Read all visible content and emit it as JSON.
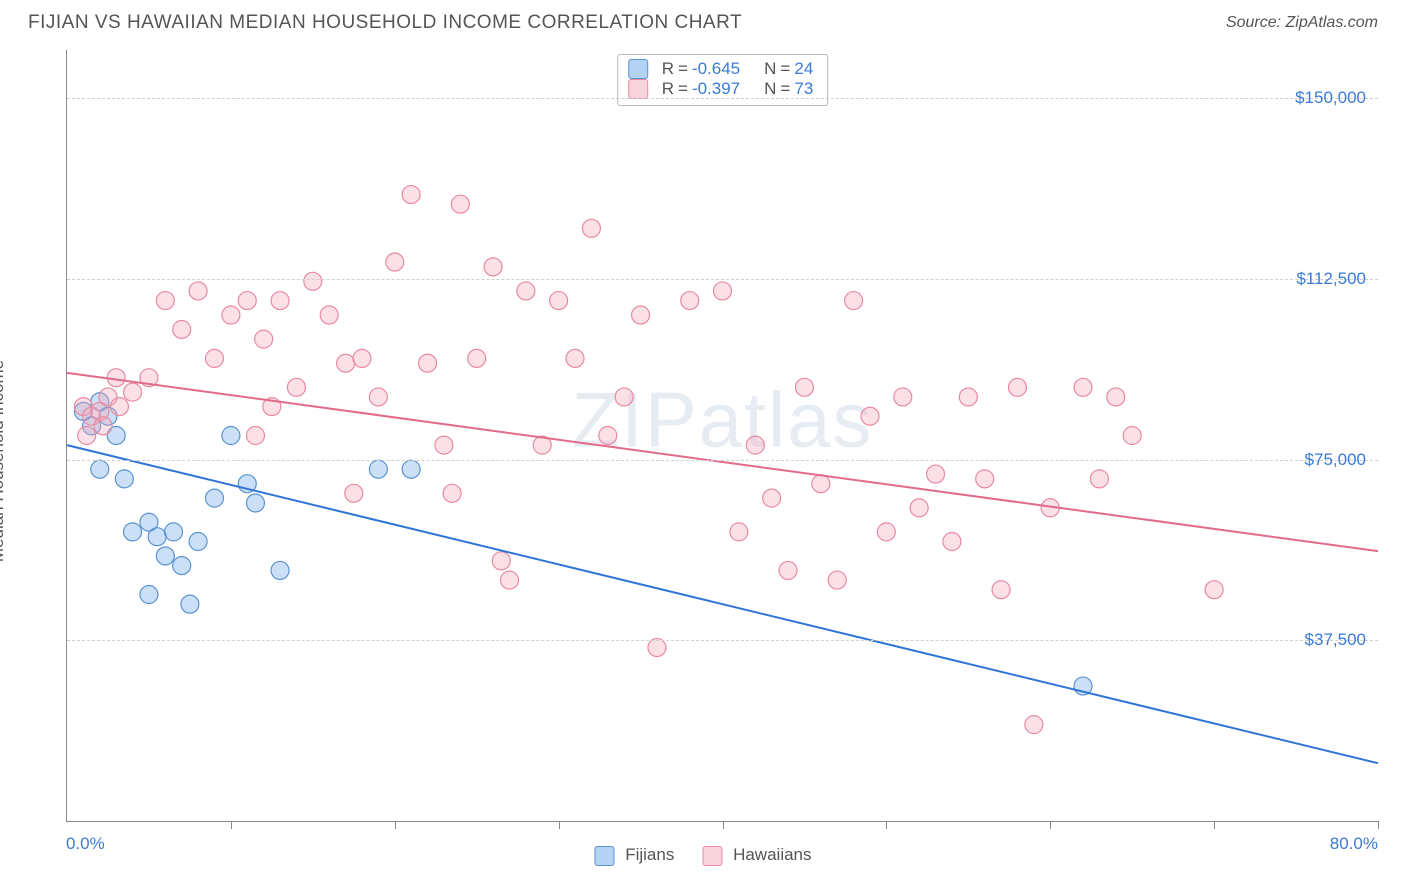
{
  "header": {
    "title": "FIJIAN VS HAWAIIAN MEDIAN HOUSEHOLD INCOME CORRELATION CHART",
    "source": "Source: ZipAtlas.com"
  },
  "chart": {
    "type": "scatter",
    "ylabel": "Median Household Income",
    "watermark": "ZIPatlas",
    "xlim": [
      0,
      80
    ],
    "ylim": [
      0,
      160000
    ],
    "x_tick_positions": [
      0,
      10,
      20,
      30,
      40,
      50,
      60,
      70,
      80
    ],
    "y_gridlines": [
      37500,
      75000,
      112500,
      150000
    ],
    "y_tick_labels": [
      "$37,500",
      "$75,000",
      "$112,500",
      "$150,000"
    ],
    "x_min_label": "0.0%",
    "x_max_label": "80.0%",
    "background_color": "#ffffff",
    "grid_color": "#d0d0d0",
    "axis_color": "#888888",
    "text_color": "#555555",
    "value_color": "#3a7bd5",
    "marker_radius": 9,
    "marker_opacity": 0.45,
    "line_width": 2,
    "title_fontsize": 19,
    "label_fontsize": 17,
    "series": [
      {
        "name": "Fijians",
        "color": "#6aa6e6",
        "fill": "rgba(106,166,230,0.35)",
        "stroke": "#5a93d1",
        "correlation_R": "-0.645",
        "correlation_N": "24",
        "trend": {
          "x1": 0,
          "y1": 78000,
          "x2": 80,
          "y2": 12000,
          "color": "#2f75d6"
        },
        "points": [
          [
            1.0,
            85000
          ],
          [
            1.5,
            82000
          ],
          [
            2.0,
            87000
          ],
          [
            2.5,
            84000
          ],
          [
            3.0,
            80000
          ],
          [
            2.0,
            73000
          ],
          [
            3.5,
            71000
          ],
          [
            4.0,
            60000
          ],
          [
            5.0,
            62000
          ],
          [
            5.5,
            59000
          ],
          [
            6.0,
            55000
          ],
          [
            7.0,
            53000
          ],
          [
            6.5,
            60000
          ],
          [
            8.0,
            58000
          ],
          [
            9.0,
            67000
          ],
          [
            10.0,
            80000
          ],
          [
            11.0,
            70000
          ],
          [
            11.5,
            66000
          ],
          [
            13.0,
            52000
          ],
          [
            7.5,
            45000
          ],
          [
            5.0,
            47000
          ],
          [
            19.0,
            73000
          ],
          [
            21.0,
            73000
          ],
          [
            62.0,
            28000
          ]
        ]
      },
      {
        "name": "Hawaiians",
        "color": "#f4a7b9",
        "fill": "rgba(244,167,185,0.35)",
        "stroke": "#e88aa1",
        "correlation_R": "-0.397",
        "correlation_N": "73",
        "trend": {
          "x1": 0,
          "y1": 93000,
          "x2": 80,
          "y2": 56000,
          "color": "#e26b8a"
        },
        "points": [
          [
            1.0,
            86000
          ],
          [
            1.5,
            84000
          ],
          [
            2.0,
            85000
          ],
          [
            2.5,
            88000
          ],
          [
            3.0,
            92000
          ],
          [
            1.2,
            80000
          ],
          [
            2.2,
            82000
          ],
          [
            3.2,
            86000
          ],
          [
            4.0,
            89000
          ],
          [
            5.0,
            92000
          ],
          [
            6.0,
            108000
          ],
          [
            7.0,
            102000
          ],
          [
            8.0,
            110000
          ],
          [
            9.0,
            96000
          ],
          [
            10.0,
            105000
          ],
          [
            11.0,
            108000
          ],
          [
            12.0,
            100000
          ],
          [
            12.5,
            86000
          ],
          [
            13.0,
            108000
          ],
          [
            14.0,
            90000
          ],
          [
            15.0,
            112000
          ],
          [
            16.0,
            105000
          ],
          [
            17.0,
            95000
          ],
          [
            18.0,
            96000
          ],
          [
            19.0,
            88000
          ],
          [
            20.0,
            116000
          ],
          [
            21.0,
            130000
          ],
          [
            22.0,
            95000
          ],
          [
            23.0,
            78000
          ],
          [
            24.0,
            128000
          ],
          [
            25.0,
            96000
          ],
          [
            26.0,
            115000
          ],
          [
            27.0,
            50000
          ],
          [
            28.0,
            110000
          ],
          [
            29.0,
            78000
          ],
          [
            30.0,
            108000
          ],
          [
            31.0,
            96000
          ],
          [
            32.0,
            123000
          ],
          [
            33.0,
            80000
          ],
          [
            34.0,
            88000
          ],
          [
            35.0,
            105000
          ],
          [
            36.0,
            36000
          ],
          [
            38.0,
            108000
          ],
          [
            40.0,
            110000
          ],
          [
            41.0,
            60000
          ],
          [
            42.0,
            78000
          ],
          [
            43.0,
            67000
          ],
          [
            44.0,
            52000
          ],
          [
            45.0,
            90000
          ],
          [
            46.0,
            70000
          ],
          [
            47.0,
            50000
          ],
          [
            48.0,
            108000
          ],
          [
            49.0,
            84000
          ],
          [
            50.0,
            60000
          ],
          [
            51.0,
            88000
          ],
          [
            52.0,
            65000
          ],
          [
            53.0,
            72000
          ],
          [
            54.0,
            58000
          ],
          [
            55.0,
            88000
          ],
          [
            56.0,
            71000
          ],
          [
            57.0,
            48000
          ],
          [
            58.0,
            90000
          ],
          [
            59.0,
            20000
          ],
          [
            60.0,
            65000
          ],
          [
            62.0,
            90000
          ],
          [
            63.0,
            71000
          ],
          [
            65.0,
            80000
          ],
          [
            70.0,
            48000
          ],
          [
            64.0,
            88000
          ],
          [
            23.5,
            68000
          ],
          [
            26.5,
            54000
          ],
          [
            17.5,
            68000
          ],
          [
            11.5,
            80000
          ]
        ]
      }
    ]
  },
  "bottom_legend": {
    "items": [
      "Fijians",
      "Hawaiians"
    ]
  }
}
